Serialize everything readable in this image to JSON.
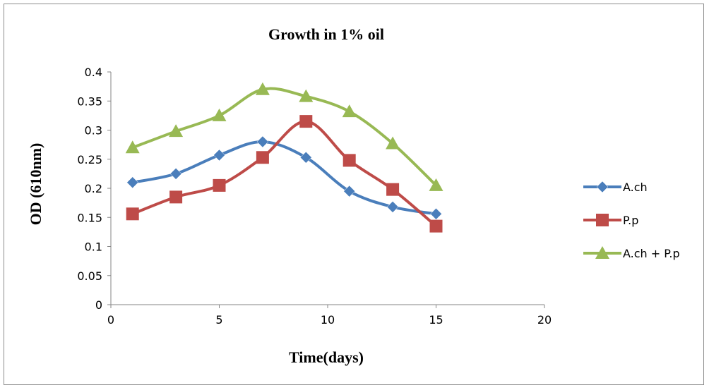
{
  "chart_data": {
    "type": "line",
    "title": "Growth in 1% oil",
    "xlabel": "Time(days)",
    "ylabel": "OD (610nm)",
    "xlim": [
      0,
      20
    ],
    "ylim": [
      0,
      0.4
    ],
    "x_ticks": [
      0,
      5,
      10,
      15,
      20
    ],
    "y_ticks": [
      0,
      0.05,
      0.1,
      0.15,
      0.2,
      0.25,
      0.3,
      0.35,
      0.4
    ],
    "x_tick_labels": [
      "0",
      "5",
      "10",
      "15",
      "20"
    ],
    "y_tick_labels": [
      "0",
      "0.05",
      "0.1",
      "0.15",
      "0.2",
      "0.25",
      "0.3",
      "0.35",
      "0.4"
    ],
    "grid": false,
    "legend_position": "right",
    "smooth_lines": true,
    "series": [
      {
        "name": "A.ch",
        "color": "#4a7ebb",
        "marker": "diamond",
        "x": [
          1,
          3,
          5,
          7,
          9,
          11,
          13,
          15
        ],
        "y": [
          0.21,
          0.225,
          0.257,
          0.28,
          0.253,
          0.195,
          0.168,
          0.156
        ]
      },
      {
        "name": "P.p",
        "color": "#be4b48",
        "marker": "square",
        "x": [
          1,
          3,
          5,
          7,
          9,
          11,
          13,
          15
        ],
        "y": [
          0.156,
          0.185,
          0.205,
          0.253,
          0.315,
          0.248,
          0.198,
          0.135
        ]
      },
      {
        "name": "A.ch + P.p",
        "color": "#98b954",
        "marker": "triangle",
        "x": [
          1,
          3,
          5,
          7,
          9,
          11,
          13,
          15
        ],
        "y": [
          0.27,
          0.298,
          0.325,
          0.37,
          0.358,
          0.332,
          0.277,
          0.205
        ]
      }
    ]
  }
}
